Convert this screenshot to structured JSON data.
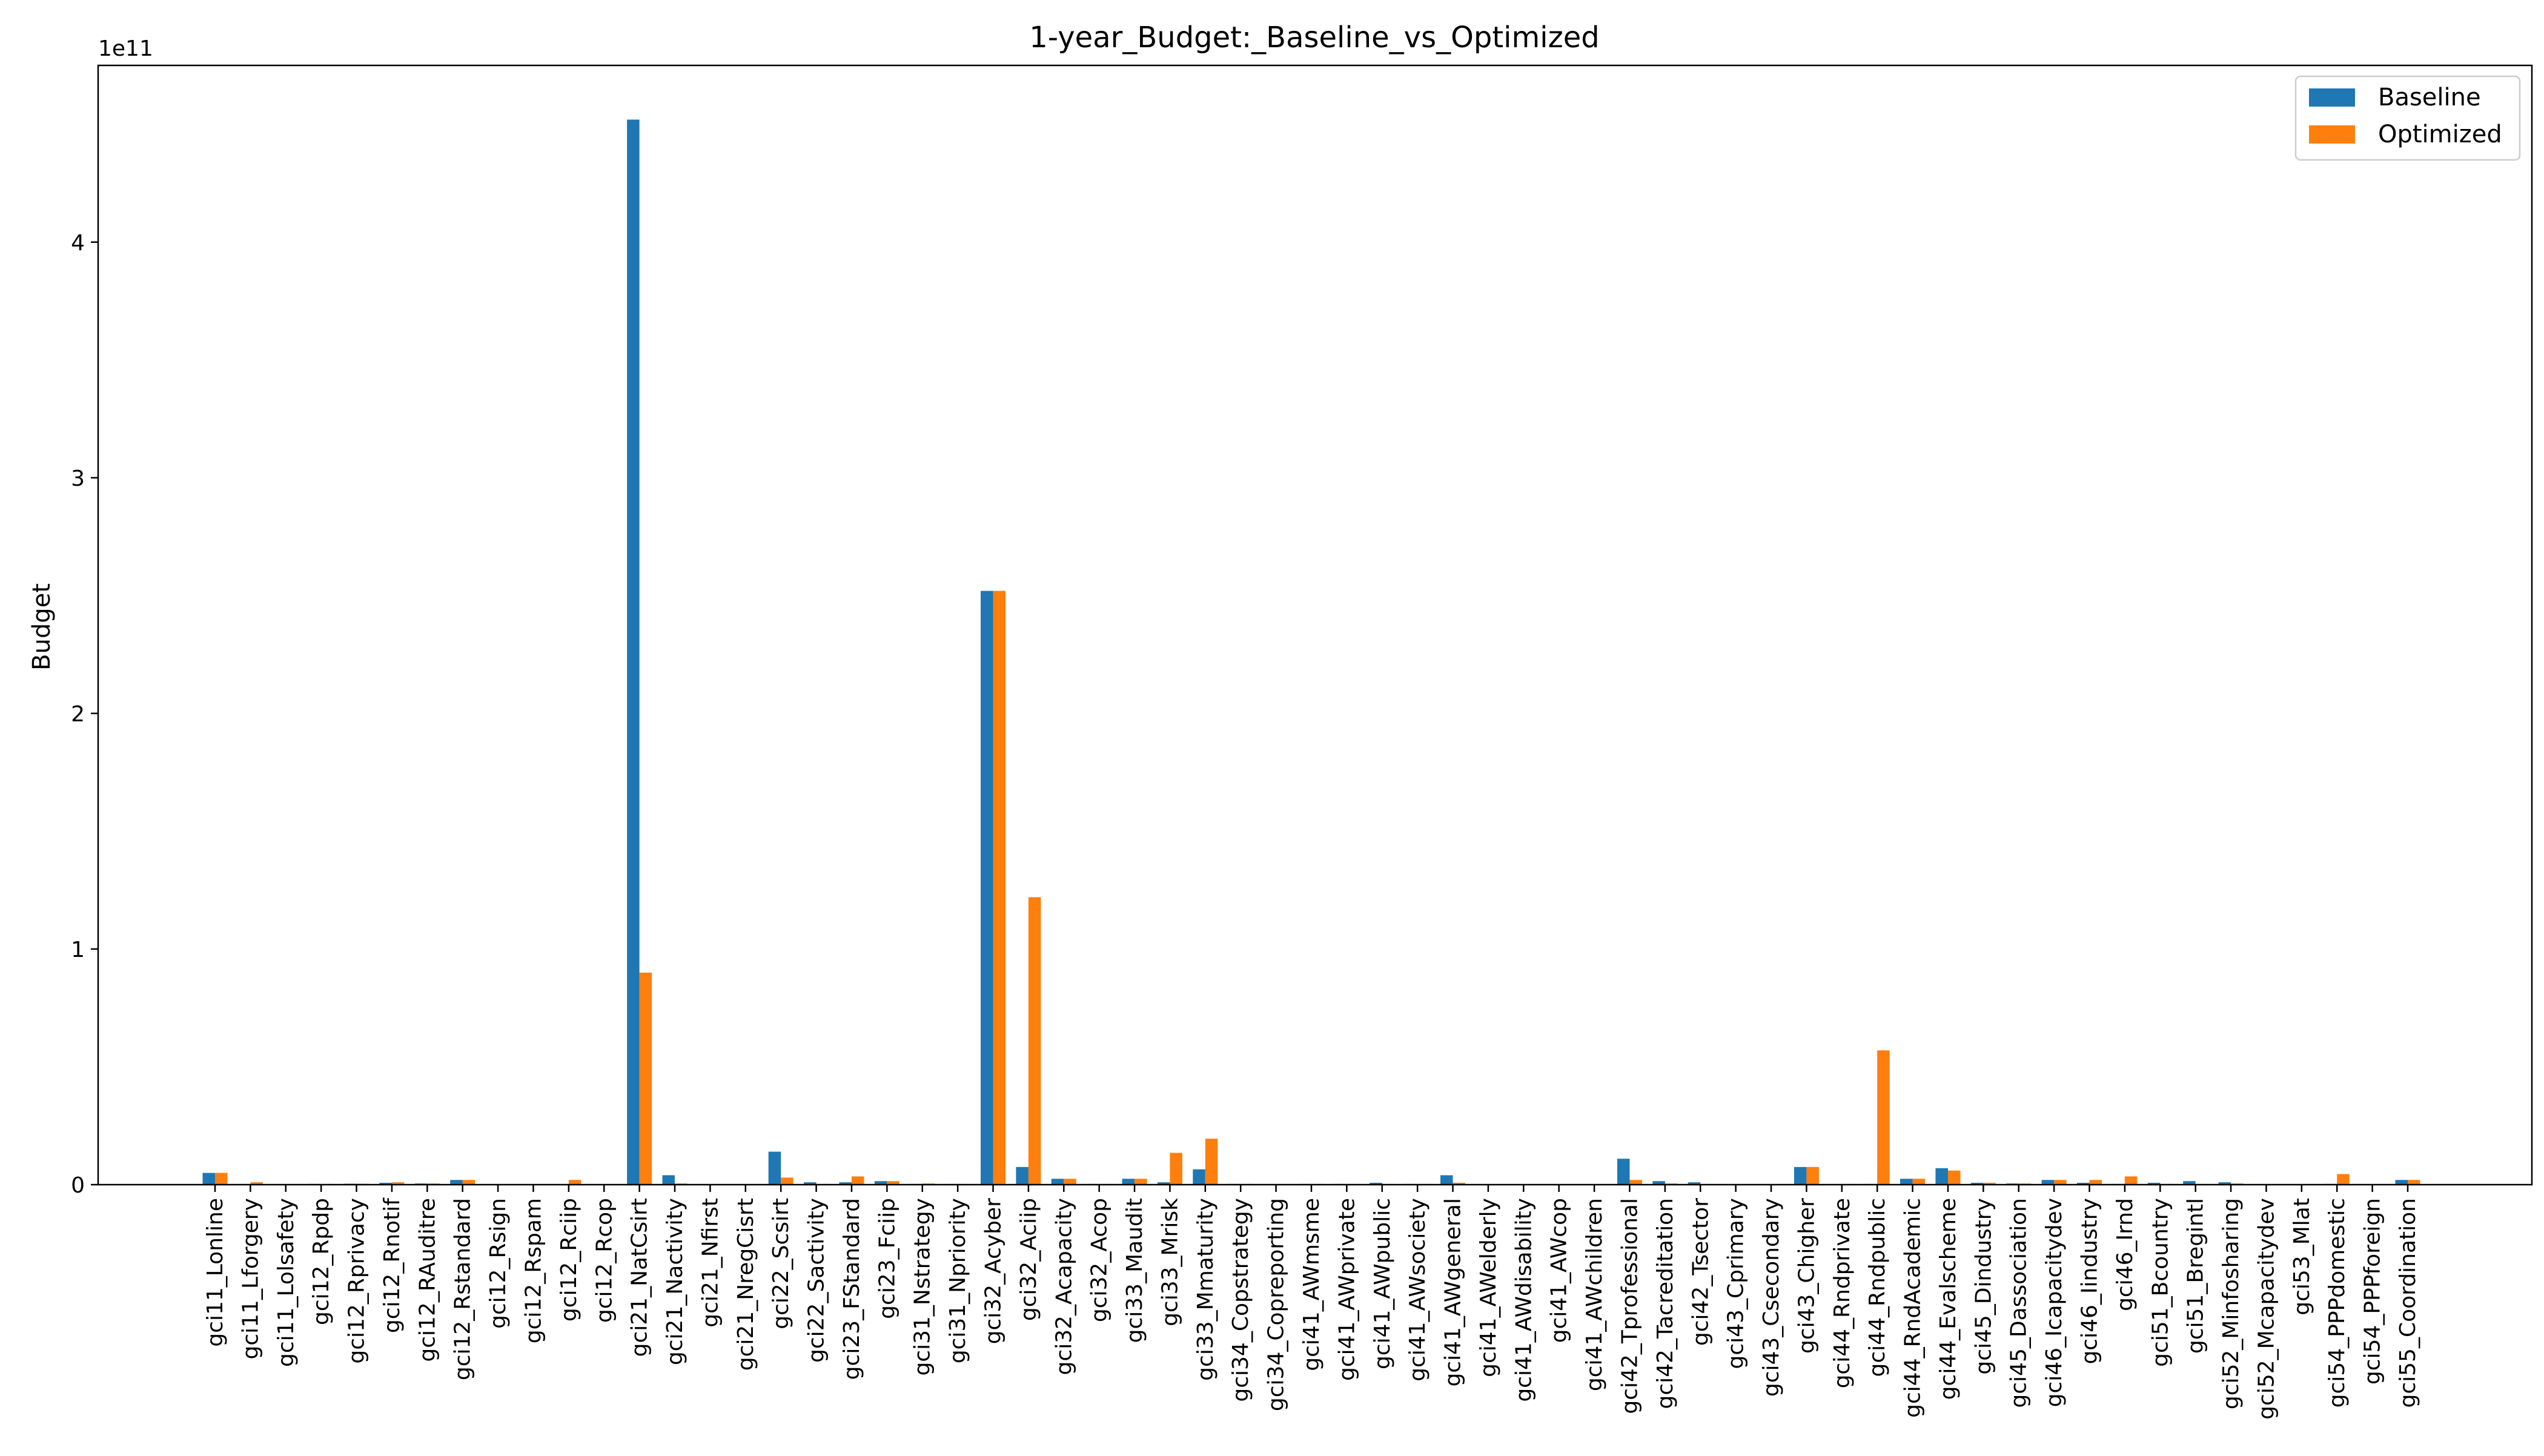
{
  "chart_data": {
    "type": "bar",
    "title": "1-year_Budget:_Baseline_vs_Optimized",
    "xlabel": "",
    "ylabel": "Budget",
    "y_multiplier_label": "1e11",
    "y_scale": 100000000000.0,
    "ylim": [
      0,
      475000000000
    ],
    "yticks": [
      0,
      100000000000,
      200000000000,
      300000000000,
      400000000000
    ],
    "ytick_labels": [
      "0",
      "1",
      "2",
      "3",
      "4"
    ],
    "grid": false,
    "legend_position": "top-right",
    "colors": {
      "Baseline": "#1f77b4",
      "Optimized": "#ff7f0e"
    },
    "categories": [
      "gci11_Lonline",
      "gci11_Lforgery",
      "gci11_Lolsafety",
      "gci12_Rpdp",
      "gci12_Rprivacy",
      "gci12_Rnotif",
      "gci12_RAuditre",
      "gci12_Rstandard",
      "gci12_Rsign",
      "gci12_Rspam",
      "gci12_Rciip",
      "gci12_Rcop",
      "gci21_NatCsirt",
      "gci21_Nactivity",
      "gci21_Nfirst",
      "gci21_NregCisrt",
      "gci22_Scsirt",
      "gci22_Sactivity",
      "gci23_FStandard",
      "gci23_Fciip",
      "gci31_Nstrategy",
      "gci31_Npriority",
      "gci32_Acyber",
      "gci32_Aciip",
      "gci32_Acapacity",
      "gci32_Acop",
      "gci33_Maudit",
      "gci33_Mrisk",
      "gci33_Mmaturity",
      "gci34_Copstrategy",
      "gci34_Copreporting",
      "gci41_AWmsme",
      "gci41_AWprivate",
      "gci41_AWpublic",
      "gci41_AWsociety",
      "gci41_AWgeneral",
      "gci41_AWelderly",
      "gci41_AWdisability",
      "gci41_AWcop",
      "gci41_AWchildren",
      "gci42_Tprofessional",
      "gci42_Tacreditation",
      "gci42_Tsector",
      "gci43_Cprimary",
      "gci43_Csecondary",
      "gci43_Chigher",
      "gci44_Rndprivate",
      "gci44_Rndpublic",
      "gci44_RndAcademic",
      "gci44_Evalscheme",
      "gci45_Dindustry",
      "gci45_Dassociation",
      "gci46_Icapacitydev",
      "gci46_Iindustry",
      "gci46_Irnd",
      "gci51_Bcountry",
      "gci51_Bregintl",
      "gci52_Minfosharing",
      "gci52_Mcapacitydev",
      "gci53_Mlat",
      "gci54_PPPdomestic",
      "gci54_PPPforeign",
      "gci55_Coordination"
    ],
    "series": [
      {
        "name": "Baseline",
        "values": [
          5000000000,
          200000000,
          100000000,
          300000000,
          400000000,
          800000000,
          500000000,
          2000000000,
          200000000,
          200000000,
          200000000,
          100000000,
          452000000000,
          4000000000,
          200000000,
          200000000,
          14000000000,
          1000000000,
          1000000000,
          1500000000,
          300000000,
          300000000,
          252000000000,
          7500000000,
          2500000000,
          300000000,
          2500000000,
          1000000000,
          6500000000,
          300000000,
          200000000,
          300000000,
          300000000,
          800000000,
          300000000,
          4000000000,
          200000000,
          200000000,
          100000000,
          200000000,
          11000000000,
          1500000000,
          1000000000,
          200000000,
          200000000,
          7500000000,
          200000000,
          300000000,
          2500000000,
          7000000000,
          800000000,
          500000000,
          2000000000,
          800000000,
          300000000,
          800000000,
          1500000000,
          1000000000,
          200000000,
          100000000,
          300000000,
          200000000,
          2000000000
        ]
      },
      {
        "name": "Optimized",
        "values": [
          5000000000,
          1000000000,
          200000000,
          300000000,
          400000000,
          1000000000,
          500000000,
          2000000000,
          200000000,
          200000000,
          2000000000,
          100000000,
          90000000000,
          500000000,
          200000000,
          200000000,
          3000000000,
          300000000,
          3500000000,
          1500000000,
          500000000,
          300000000,
          252000000000,
          122000000000,
          2500000000,
          300000000,
          2500000000,
          13500000000,
          19500000000,
          300000000,
          200000000,
          300000000,
          300000000,
          300000000,
          300000000,
          800000000,
          200000000,
          200000000,
          100000000,
          200000000,
          2000000000,
          500000000,
          200000000,
          200000000,
          200000000,
          7500000000,
          300000000,
          57000000000,
          2500000000,
          6000000000,
          800000000,
          500000000,
          2000000000,
          2000000000,
          3500000000,
          300000000,
          300000000,
          500000000,
          200000000,
          100000000,
          4500000000,
          200000000,
          2000000000
        ]
      }
    ]
  }
}
